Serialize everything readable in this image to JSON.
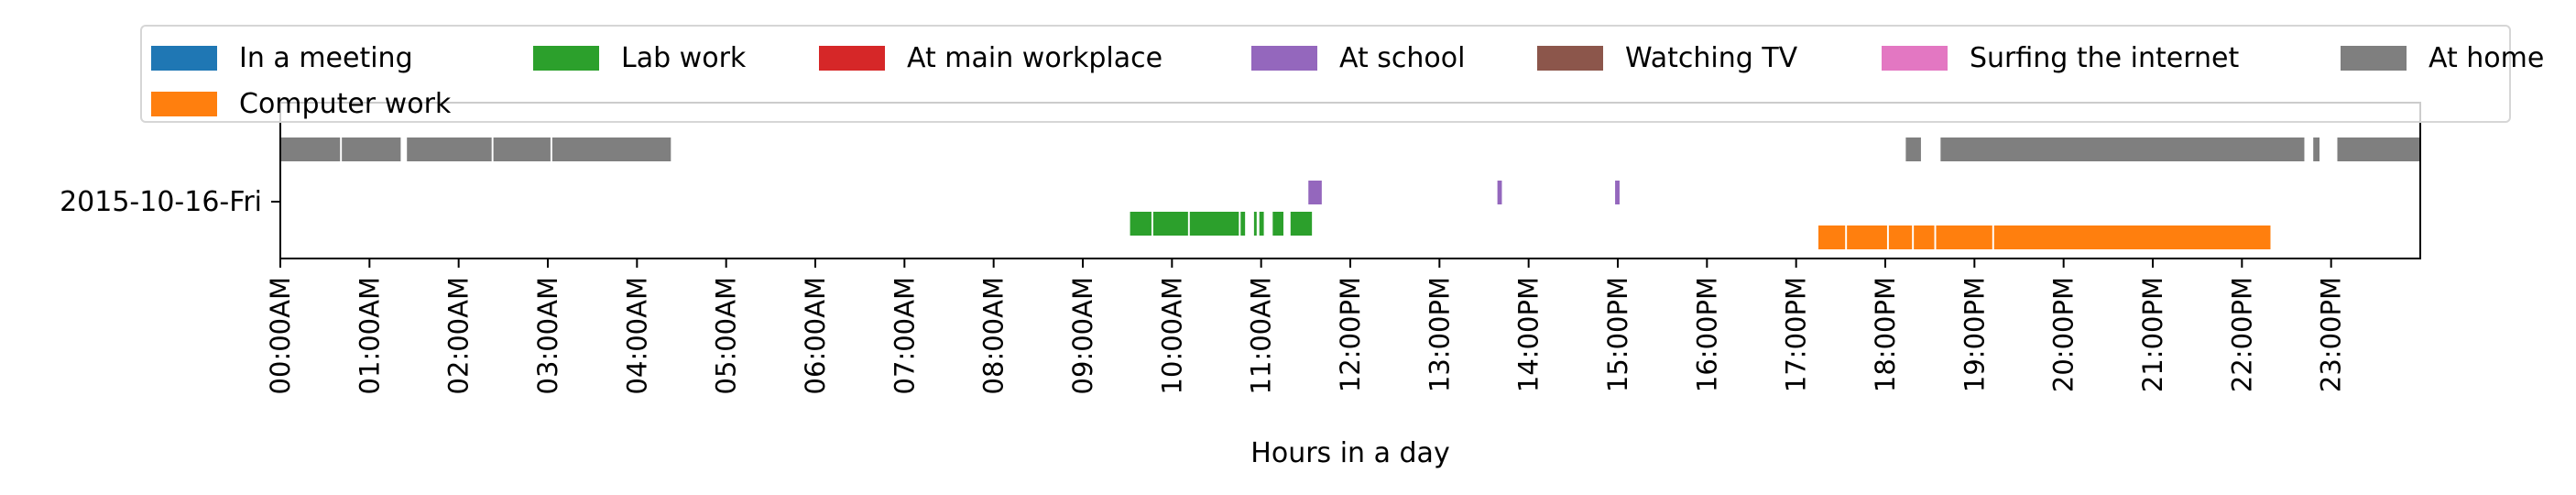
{
  "chart_data": {
    "type": "timeline",
    "xlabel": "Hours in a day",
    "xlim": [
      0,
      24
    ],
    "y_category": "2015-10-16-Fri",
    "x_ticks": [
      "00:00AM",
      "01:00AM",
      "02:00AM",
      "03:00AM",
      "04:00AM",
      "05:00AM",
      "06:00AM",
      "07:00AM",
      "08:00AM",
      "09:00AM",
      "10:00AM",
      "11:00AM",
      "12:00PM",
      "13:00PM",
      "14:00PM",
      "15:00PM",
      "16:00PM",
      "17:00PM",
      "18:00PM",
      "19:00PM",
      "20:00PM",
      "21:00PM",
      "22:00PM",
      "23:00PM"
    ],
    "legend_position": "top",
    "series": [
      {
        "name": "In a meeting",
        "color": "#1f77b4",
        "segments": []
      },
      {
        "name": "Computer work",
        "color": "#ff7f0e",
        "segments": [
          [
            17.25,
            17.55
          ],
          [
            17.57,
            18.02
          ],
          [
            18.04,
            18.3
          ],
          [
            18.32,
            18.55
          ],
          [
            18.57,
            19.2
          ],
          [
            19.22,
            22.32
          ]
        ]
      },
      {
        "name": "Lab work",
        "color": "#2ca02c",
        "segments": [
          [
            9.53,
            9.77
          ],
          [
            9.79,
            10.18
          ],
          [
            10.2,
            10.75
          ],
          [
            10.77,
            10.82
          ],
          [
            10.92,
            10.95
          ],
          [
            10.98,
            11.03
          ],
          [
            11.13,
            11.25
          ],
          [
            11.33,
            11.57
          ]
        ]
      },
      {
        "name": "At main workplace",
        "color": "#d62728",
        "segments": []
      },
      {
        "name": "At school",
        "color": "#9467bd",
        "segments": [
          [
            11.53,
            11.68
          ],
          [
            13.65,
            13.7
          ],
          [
            14.97,
            15.02
          ]
        ]
      },
      {
        "name": "Watching TV",
        "color": "#8c564b",
        "segments": []
      },
      {
        "name": "Surfing the internet",
        "color": "#e377c2",
        "segments": []
      },
      {
        "name": "At home",
        "color": "#7f7f7f",
        "segments": [
          [
            0.0,
            0.67
          ],
          [
            0.69,
            1.35
          ],
          [
            1.42,
            2.37
          ],
          [
            2.39,
            3.03
          ],
          [
            3.05,
            4.38
          ],
          [
            18.23,
            18.4
          ],
          [
            18.62,
            22.7
          ],
          [
            22.8,
            22.87
          ],
          [
            23.07,
            24.0
          ]
        ]
      }
    ]
  }
}
